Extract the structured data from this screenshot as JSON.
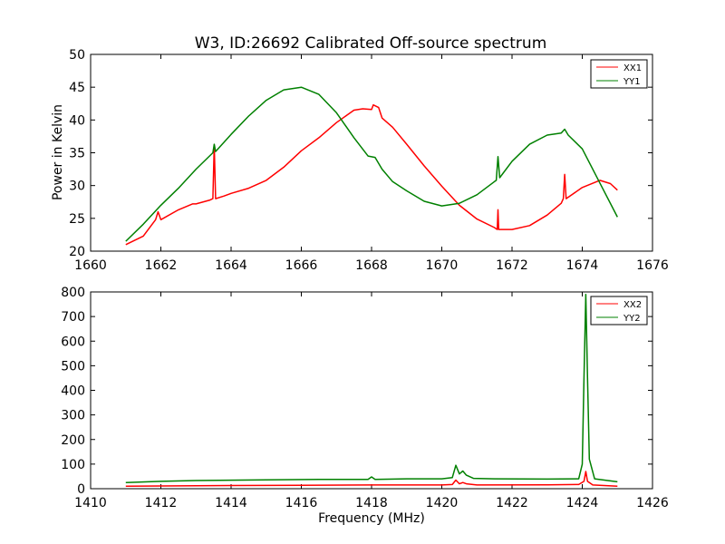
{
  "chart_data": [
    {
      "type": "line",
      "title": "W3, ID:26692 Calibrated Off-source spectrum",
      "xlabel": "",
      "ylabel": "Power in Kelvin",
      "xlim": [
        1660,
        1676
      ],
      "ylim": [
        20,
        50
      ],
      "xticks": [
        "1660",
        "1662",
        "1664",
        "1666",
        "1668",
        "1670",
        "1672",
        "1674",
        "1676"
      ],
      "yticks": [
        "20",
        "25",
        "30",
        "35",
        "40",
        "45",
        "50"
      ],
      "grid": false,
      "legend_position": "top-right",
      "series": [
        {
          "name": "XX1",
          "color": "#ff0000",
          "points": [
            [
              1661.0,
              21.0
            ],
            [
              1661.5,
              22.3
            ],
            [
              1661.85,
              24.8
            ],
            [
              1661.92,
              26.0
            ],
            [
              1662.0,
              24.8
            ],
            [
              1662.5,
              26.3
            ],
            [
              1662.9,
              27.2
            ],
            [
              1663.0,
              27.2
            ],
            [
              1663.4,
              27.8
            ],
            [
              1663.48,
              28.0
            ],
            [
              1663.52,
              36.2
            ],
            [
              1663.56,
              28.0
            ],
            [
              1663.8,
              28.4
            ],
            [
              1664.0,
              28.8
            ],
            [
              1664.5,
              29.6
            ],
            [
              1665.0,
              30.8
            ],
            [
              1665.5,
              32.8
            ],
            [
              1666.0,
              35.3
            ],
            [
              1666.5,
              37.3
            ],
            [
              1667.0,
              39.6
            ],
            [
              1667.5,
              41.5
            ],
            [
              1667.75,
              41.7
            ],
            [
              1668.0,
              41.6
            ],
            [
              1668.05,
              42.3
            ],
            [
              1668.2,
              41.9
            ],
            [
              1668.3,
              40.3
            ],
            [
              1668.6,
              38.9
            ],
            [
              1669.0,
              36.3
            ],
            [
              1669.5,
              33.0
            ],
            [
              1670.0,
              29.9
            ],
            [
              1670.5,
              27.0
            ],
            [
              1671.0,
              24.9
            ],
            [
              1671.5,
              23.6
            ],
            [
              1671.58,
              23.3
            ],
            [
              1671.6,
              26.3
            ],
            [
              1671.62,
              23.3
            ],
            [
              1672.0,
              23.3
            ],
            [
              1672.5,
              23.9
            ],
            [
              1673.0,
              25.5
            ],
            [
              1673.4,
              27.3
            ],
            [
              1673.46,
              28.0
            ],
            [
              1673.5,
              31.7
            ],
            [
              1673.54,
              28.0
            ],
            [
              1674.0,
              29.7
            ],
            [
              1674.5,
              30.8
            ],
            [
              1674.8,
              30.3
            ],
            [
              1675.0,
              29.3
            ]
          ]
        },
        {
          "name": "YY1",
          "color": "#008000",
          "points": [
            [
              1661.0,
              21.5
            ],
            [
              1661.5,
              24.1
            ],
            [
              1662.0,
              27.0
            ],
            [
              1662.5,
              29.6
            ],
            [
              1663.0,
              32.5
            ],
            [
              1663.48,
              35.0
            ],
            [
              1663.52,
              36.3
            ],
            [
              1663.56,
              35.2
            ],
            [
              1664.0,
              37.8
            ],
            [
              1664.5,
              40.6
            ],
            [
              1665.0,
              43.0
            ],
            [
              1665.5,
              44.6
            ],
            [
              1666.0,
              45.0
            ],
            [
              1666.5,
              43.9
            ],
            [
              1667.0,
              41.1
            ],
            [
              1667.5,
              37.3
            ],
            [
              1667.9,
              34.5
            ],
            [
              1668.1,
              34.3
            ],
            [
              1668.3,
              32.5
            ],
            [
              1668.6,
              30.6
            ],
            [
              1669.0,
              29.2
            ],
            [
              1669.5,
              27.6
            ],
            [
              1670.0,
              26.9
            ],
            [
              1670.5,
              27.3
            ],
            [
              1671.0,
              28.6
            ],
            [
              1671.5,
              30.6
            ],
            [
              1671.55,
              30.8
            ],
            [
              1671.6,
              34.4
            ],
            [
              1671.65,
              31.2
            ],
            [
              1672.0,
              33.7
            ],
            [
              1672.5,
              36.3
            ],
            [
              1673.0,
              37.7
            ],
            [
              1673.4,
              38.0
            ],
            [
              1673.5,
              38.6
            ],
            [
              1673.6,
              37.7
            ],
            [
              1674.0,
              35.6
            ],
            [
              1674.5,
              30.4
            ],
            [
              1675.0,
              25.2
            ]
          ]
        }
      ]
    },
    {
      "type": "line",
      "title": "",
      "xlabel": "Frequency (MHz)",
      "ylabel": "",
      "xlim": [
        1410,
        1426
      ],
      "ylim": [
        0,
        800
      ],
      "xticks": [
        "1410",
        "1412",
        "1414",
        "1416",
        "1418",
        "1420",
        "1422",
        "1424",
        "1426"
      ],
      "yticks": [
        "0",
        "100",
        "200",
        "300",
        "400",
        "500",
        "600",
        "700",
        "800"
      ],
      "grid": false,
      "legend_position": "top-right",
      "series": [
        {
          "name": "XX2",
          "color": "#ff0000",
          "points": [
            [
              1411.0,
              10
            ],
            [
              1413.0,
              12
            ],
            [
              1416.0,
              14
            ],
            [
              1418.0,
              15
            ],
            [
              1420.0,
              15
            ],
            [
              1420.3,
              17
            ],
            [
              1420.4,
              35
            ],
            [
              1420.5,
              20
            ],
            [
              1420.6,
              25
            ],
            [
              1420.7,
              20
            ],
            [
              1421.0,
              15
            ],
            [
              1423.0,
              16
            ],
            [
              1423.9,
              17
            ],
            [
              1424.05,
              30
            ],
            [
              1424.1,
              70
            ],
            [
              1424.15,
              30
            ],
            [
              1424.3,
              15
            ],
            [
              1425.0,
              10
            ]
          ]
        },
        {
          "name": "YY2",
          "color": "#008000",
          "points": [
            [
              1411.0,
              25
            ],
            [
              1412.0,
              30
            ],
            [
              1413.0,
              33
            ],
            [
              1415.0,
              36
            ],
            [
              1416.5,
              38
            ],
            [
              1417.9,
              38
            ],
            [
              1418.0,
              48
            ],
            [
              1418.1,
              38
            ],
            [
              1419.0,
              40
            ],
            [
              1420.0,
              40
            ],
            [
              1420.3,
              45
            ],
            [
              1420.4,
              95
            ],
            [
              1420.5,
              60
            ],
            [
              1420.6,
              72
            ],
            [
              1420.7,
              55
            ],
            [
              1420.9,
              42
            ],
            [
              1421.5,
              40
            ],
            [
              1423.0,
              39
            ],
            [
              1423.9,
              40
            ],
            [
              1424.0,
              100
            ],
            [
              1424.05,
              450
            ],
            [
              1424.1,
              790
            ],
            [
              1424.15,
              450
            ],
            [
              1424.2,
              120
            ],
            [
              1424.35,
              40
            ],
            [
              1425.0,
              28
            ]
          ]
        }
      ]
    }
  ]
}
